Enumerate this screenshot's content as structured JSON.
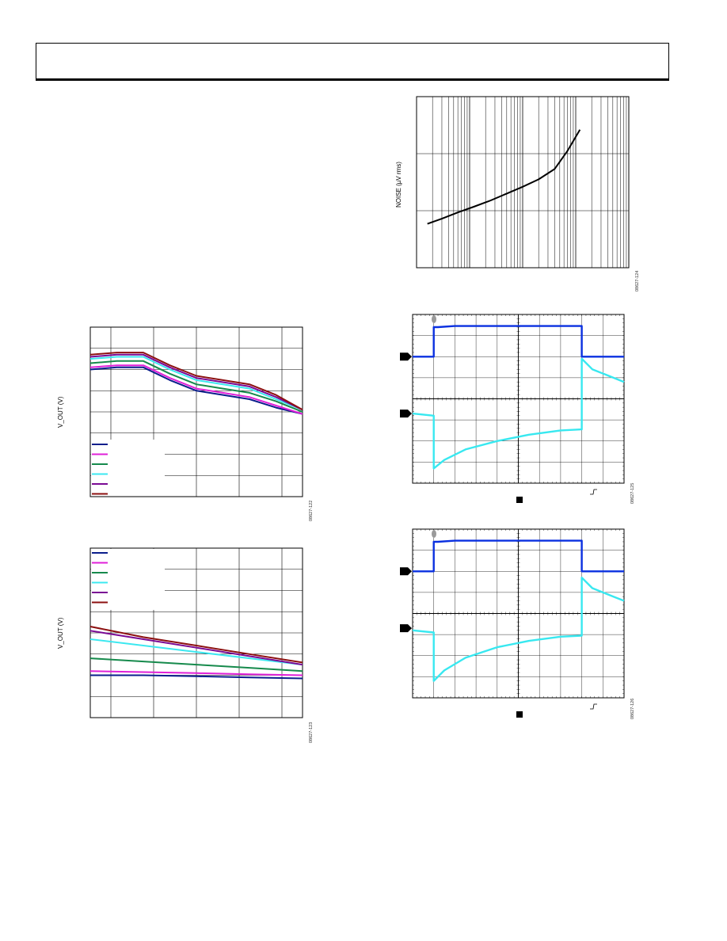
{
  "colors": {
    "blue": "#0b1e8c",
    "magenta": "#e020d8",
    "green": "#168a4c",
    "cyan": "#3ce8f0",
    "purple": "#7a0a94",
    "maroon": "#8c1010",
    "scope_blue": "#0a30e0",
    "scope_cyan": "#38e8f0",
    "grid": "#000000",
    "marker": "#9a9a9a"
  },
  "figure_ids": {
    "noise": "08627-124",
    "vout_a": "08627-122",
    "vout_b": "08627-123",
    "scope_a": "08627-125",
    "scope_b": "08627-126"
  },
  "chart_data": [
    {
      "id": "noise",
      "type": "line",
      "ylabel": "NOISE (µV rms)",
      "xscale": "log",
      "xlim": [
        1,
        10000
      ],
      "ylim": [
        0,
        3
      ],
      "grid": true,
      "series": [
        {
          "color": "black",
          "x": [
            1.6,
            3,
            6,
            12,
            25,
            50,
            100,
            200,
            400,
            700,
            1200
          ],
          "y": [
            0.77,
            0.86,
            0.97,
            1.07,
            1.18,
            1.3,
            1.42,
            1.55,
            1.73,
            2.05,
            2.42
          ]
        }
      ]
    },
    {
      "id": "vout_a",
      "type": "line",
      "ylabel": "V_OUT (V)",
      "xlim": [
        0,
        8
      ],
      "ylim": [
        0,
        8
      ],
      "grid": true,
      "legend": "bottom-left",
      "series": [
        {
          "color": "blue",
          "x": [
            0,
            1,
            2,
            3,
            4,
            5,
            6,
            7,
            8
          ],
          "y": [
            6.0,
            6.1,
            6.1,
            5.5,
            5.0,
            4.8,
            4.6,
            4.2,
            3.9
          ]
        },
        {
          "color": "magenta",
          "x": [
            0,
            1,
            2,
            3,
            4,
            5,
            6,
            7,
            8
          ],
          "y": [
            6.1,
            6.2,
            6.2,
            5.6,
            5.1,
            4.9,
            4.7,
            4.3,
            3.9
          ]
        },
        {
          "color": "green",
          "x": [
            0,
            1,
            2,
            3,
            4,
            5,
            6,
            7,
            8
          ],
          "y": [
            6.3,
            6.4,
            6.4,
            5.8,
            5.3,
            5.1,
            4.9,
            4.5,
            4.0
          ]
        },
        {
          "color": "cyan",
          "x": [
            0,
            1,
            2,
            3,
            4,
            5,
            6,
            7,
            8
          ],
          "y": [
            6.5,
            6.6,
            6.6,
            6.0,
            5.5,
            5.3,
            5.1,
            4.6,
            4.1
          ]
        },
        {
          "color": "purple",
          "x": [
            0,
            1,
            2,
            3,
            4,
            5,
            6,
            7,
            8
          ],
          "y": [
            6.6,
            6.7,
            6.7,
            6.1,
            5.6,
            5.4,
            5.2,
            4.7,
            4.1
          ]
        },
        {
          "color": "maroon",
          "x": [
            0,
            1,
            2,
            3,
            4,
            5,
            6,
            7,
            8
          ],
          "y": [
            6.7,
            6.8,
            6.8,
            6.2,
            5.7,
            5.5,
            5.3,
            4.8,
            4.1
          ]
        }
      ]
    },
    {
      "id": "vout_b",
      "type": "line",
      "ylabel": "V_OUT (V)",
      "xlim": [
        0,
        8
      ],
      "ylim": [
        0,
        8
      ],
      "grid": true,
      "legend": "top-left",
      "series": [
        {
          "color": "blue",
          "x": [
            0,
            2,
            4,
            6,
            8
          ],
          "y": [
            2.0,
            2.0,
            1.95,
            1.9,
            1.85
          ]
        },
        {
          "color": "magenta",
          "x": [
            0,
            2,
            4,
            6,
            8
          ],
          "y": [
            2.2,
            2.15,
            2.1,
            2.05,
            2.0
          ]
        },
        {
          "color": "green",
          "x": [
            0,
            2,
            4,
            6,
            8
          ],
          "y": [
            2.8,
            2.65,
            2.5,
            2.35,
            2.2
          ]
        },
        {
          "color": "cyan",
          "x": [
            0,
            2,
            4,
            6,
            8
          ],
          "y": [
            3.7,
            3.4,
            3.1,
            2.8,
            2.5
          ]
        },
        {
          "color": "purple",
          "x": [
            0,
            2,
            4,
            6,
            8
          ],
          "y": [
            4.1,
            3.7,
            3.3,
            2.9,
            2.5
          ]
        },
        {
          "color": "maroon",
          "x": [
            0,
            2,
            4,
            6,
            8
          ],
          "y": [
            4.3,
            3.8,
            3.4,
            3.0,
            2.6
          ]
        }
      ]
    },
    {
      "id": "scope_a",
      "type": "line",
      "xlim": [
        0,
        10
      ],
      "ylim": [
        0,
        8
      ],
      "grid": true,
      "series": [
        {
          "color": "scope_blue",
          "x": [
            0,
            1.0,
            1.0,
            1.2,
            2.0,
            3.0,
            8.0,
            8.0,
            10.0
          ],
          "y": [
            6.0,
            6.0,
            7.4,
            7.4,
            7.45,
            7.45,
            7.45,
            6.0,
            6.0
          ]
        },
        {
          "color": "scope_cyan",
          "x": [
            0,
            1.0,
            1.0,
            1.5,
            2.5,
            4.0,
            5.5,
            7.0,
            8.0,
            8.0,
            8.5,
            9.5,
            10.0
          ],
          "y": [
            3.3,
            3.2,
            0.7,
            1.1,
            1.6,
            2.0,
            2.3,
            2.5,
            2.55,
            5.9,
            5.4,
            5.0,
            4.8
          ]
        }
      ]
    },
    {
      "id": "scope_b",
      "type": "line",
      "xlim": [
        0,
        10
      ],
      "ylim": [
        0,
        8
      ],
      "grid": true,
      "series": [
        {
          "color": "scope_blue",
          "x": [
            0,
            1.0,
            1.0,
            1.2,
            2.0,
            3.0,
            8.0,
            8.0,
            10.0
          ],
          "y": [
            6.0,
            6.0,
            7.4,
            7.4,
            7.45,
            7.45,
            7.45,
            6.0,
            6.0
          ]
        },
        {
          "color": "scope_cyan",
          "x": [
            0,
            1.0,
            1.0,
            1.5,
            2.5,
            4.0,
            5.5,
            7.0,
            8.0,
            8.0,
            8.5,
            9.5,
            10.0
          ],
          "y": [
            3.2,
            3.1,
            0.8,
            1.3,
            1.9,
            2.4,
            2.7,
            2.9,
            2.95,
            5.7,
            5.2,
            4.8,
            4.6
          ]
        }
      ]
    }
  ]
}
